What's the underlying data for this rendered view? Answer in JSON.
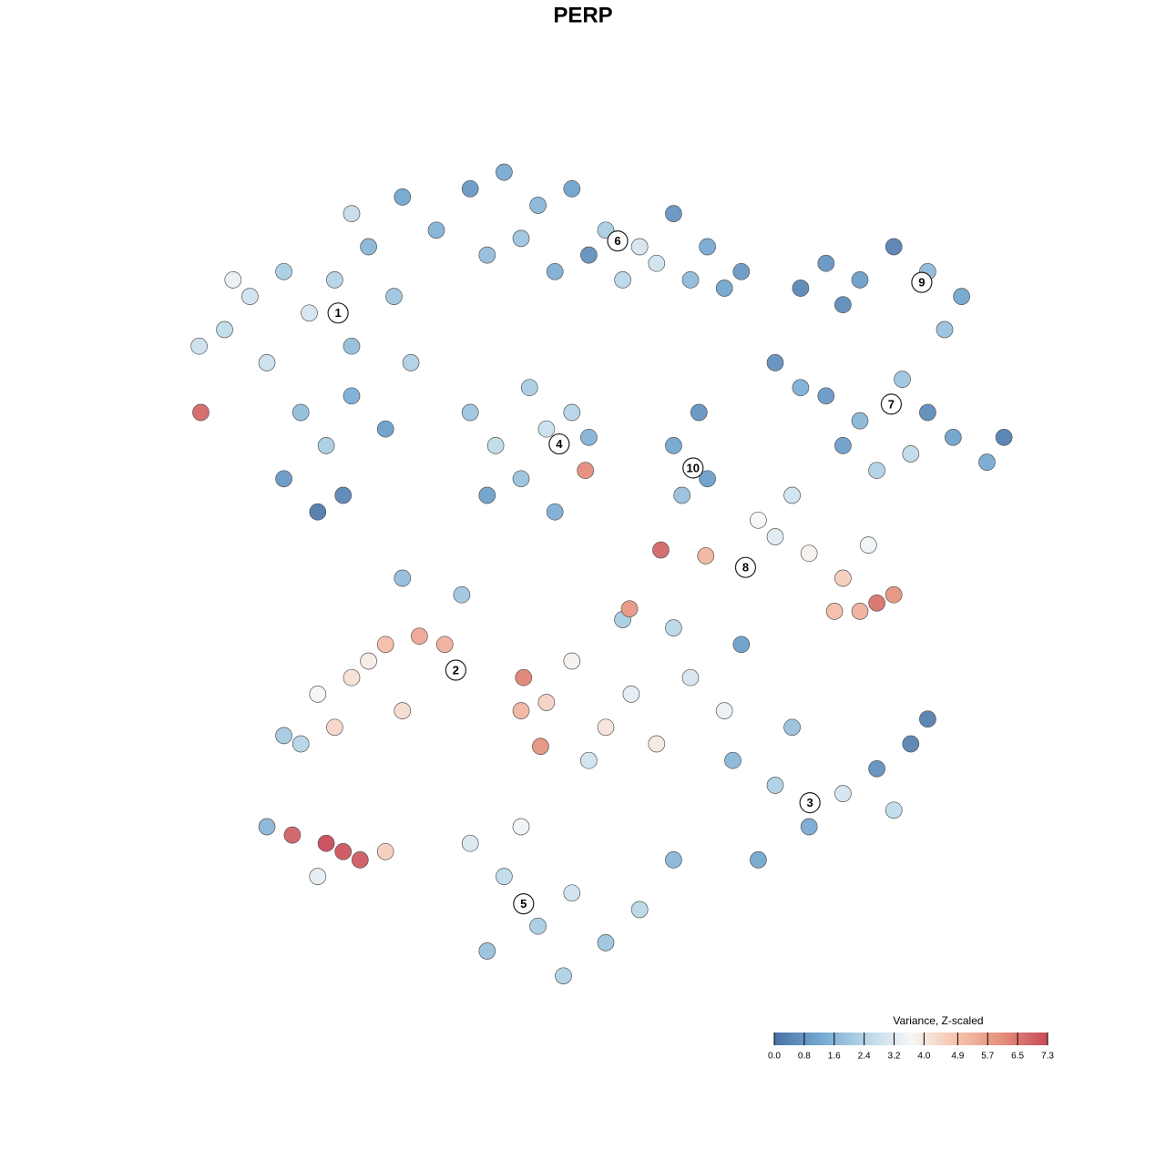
{
  "chart_data": {
    "type": "scatter",
    "title": "PERP",
    "xlim": [
      0,
      100
    ],
    "ylim": [
      0,
      100
    ],
    "x": [
      5,
      8,
      12,
      15,
      18,
      20,
      22,
      25,
      27,
      10,
      14,
      17,
      20,
      12,
      24,
      2,
      2.2,
      16,
      19,
      6,
      20,
      26,
      30,
      34,
      38,
      42,
      46,
      50,
      54,
      58,
      62,
      66,
      36,
      40,
      44,
      48,
      52,
      56,
      60,
      64,
      73,
      76,
      80,
      84,
      88,
      92,
      90,
      78,
      70,
      73,
      76,
      80,
      85,
      88,
      91,
      95,
      97,
      86,
      82,
      78,
      34,
      37,
      40,
      43,
      46,
      48,
      41,
      36,
      47.6,
      44,
      58,
      61,
      59,
      62,
      68,
      72,
      74,
      78,
      80,
      82,
      84,
      77,
      81,
      70,
      61.8,
      56.5,
      20,
      24,
      28,
      31,
      16,
      18,
      14,
      12,
      26,
      22,
      40,
      40.3,
      43,
      46,
      50,
      53,
      56,
      60,
      64,
      48,
      42.3,
      58,
      66,
      52,
      65,
      70,
      74,
      78,
      82,
      86,
      88,
      84,
      68,
      72,
      34,
      38,
      42,
      46,
      50,
      54,
      58,
      36,
      45,
      40,
      10,
      13,
      17,
      19,
      21,
      16,
      24,
      33,
      26,
      52.8
    ],
    "y": [
      80,
      84,
      87,
      82,
      86,
      78,
      90,
      84,
      76,
      76,
      70,
      66,
      72,
      62,
      68,
      78,
      70,
      58,
      60,
      86,
      94,
      96,
      92,
      97,
      99,
      95,
      97,
      92,
      90,
      94,
      90,
      87,
      89,
      91,
      87,
      89,
      86,
      88,
      86,
      85,
      85,
      88,
      86,
      90,
      87,
      84,
      80,
      83,
      76,
      73,
      72,
      69,
      74,
      70,
      67,
      64,
      67,
      65,
      63,
      66,
      70,
      66,
      62,
      68,
      70,
      67,
      73,
      60,
      63,
      58,
      66,
      70,
      60,
      62,
      57,
      60,
      53,
      50,
      46,
      47,
      48,
      46,
      54,
      55,
      52.7,
      53.4,
      38,
      42,
      43,
      42,
      36,
      32,
      30,
      31,
      34,
      40,
      34,
      38,
      35,
      40,
      32,
      36,
      30,
      38,
      34,
      28,
      29.7,
      44,
      42,
      45,
      28,
      25,
      20,
      24,
      27,
      30,
      33,
      22,
      16,
      32,
      18,
      14,
      8,
      12,
      6,
      10,
      16,
      5,
      2,
      20,
      20,
      19,
      18,
      17,
      16,
      14,
      17,
      48,
      50,
      46.3
    ],
    "values": [
      2.6,
      2.9,
      2.2,
      3.0,
      2.4,
      1.8,
      1.6,
      2.0,
      2.3,
      2.8,
      1.8,
      2.2,
      1.4,
      0.9,
      1.0,
      2.8,
      6.8,
      0.2,
      0.5,
      3.4,
      2.7,
      1.2,
      1.5,
      0.9,
      1.3,
      1.6,
      1.1,
      2.2,
      3.0,
      0.8,
      1.3,
      0.9,
      1.8,
      2.0,
      1.4,
      0.7,
      2.5,
      2.9,
      1.7,
      1.2,
      0.5,
      0.8,
      1.0,
      0.4,
      1.7,
      1.2,
      1.9,
      0.6,
      0.7,
      1.4,
      0.9,
      1.6,
      2.0,
      0.6,
      1.1,
      1.3,
      0.3,
      2.6,
      2.3,
      1.0,
      2.0,
      2.6,
      1.9,
      2.8,
      2.4,
      1.5,
      2.2,
      1.1,
      6.1,
      1.4,
      1.2,
      0.8,
      1.9,
      1.0,
      3.6,
      2.9,
      3.8,
      4.6,
      5.3,
      6.6,
      6.0,
      5.0,
      3.5,
      3.2,
      5.2,
      6.8,
      4.2,
      5.0,
      5.5,
      5.3,
      3.7,
      4.4,
      2.4,
      2.1,
      4.3,
      3.9,
      5.2,
      6.3,
      4.5,
      3.8,
      4.1,
      3.3,
      4.0,
      3.0,
      3.4,
      2.9,
      6.0,
      2.5,
      1.0,
      2.2,
      1.6,
      2.3,
      1.3,
      3.0,
      0.7,
      0.4,
      0.3,
      2.6,
      1.2,
      1.9,
      3.1,
      2.6,
      2.2,
      2.9,
      2.0,
      2.5,
      1.6,
      1.9,
      2.3,
      3.5,
      1.6,
      6.9,
      7.3,
      7.1,
      7.0,
      3.3,
      4.6,
      2.0,
      1.8,
      5.9
    ],
    "annotations": [
      {
        "text": "1",
        "x": 18.4,
        "y": 82.0
      },
      {
        "text": "2",
        "x": 32.3,
        "y": 38.9
      },
      {
        "text": "3",
        "x": 74.1,
        "y": 22.9
      },
      {
        "text": "4",
        "x": 44.5,
        "y": 66.2
      },
      {
        "text": "5",
        "x": 40.3,
        "y": 10.7
      },
      {
        "text": "6",
        "x": 51.4,
        "y": 90.7
      },
      {
        "text": "7",
        "x": 83.7,
        "y": 71.0
      },
      {
        "text": "8",
        "x": 66.5,
        "y": 51.3
      },
      {
        "text": "9",
        "x": 87.3,
        "y": 85.7
      },
      {
        "text": "10",
        "x": 60.3,
        "y": 63.3
      }
    ],
    "colorbar": {
      "title": "Variance, Z-scaled",
      "clim": [
        0,
        7.3
      ],
      "colors": [
        "#4a72a6",
        "#74a7d0",
        "#b7d6e8",
        "#f7f7f7",
        "#f6c3ad",
        "#e48f7c",
        "#c94a5a"
      ],
      "ticks": [
        {
          "value": 0,
          "label": "0.0"
        },
        0.8,
        1.6,
        2.4,
        3.2,
        {
          "value": 4,
          "label": "4.0"
        },
        4.9,
        5.7,
        6.5,
        7.3
      ]
    }
  }
}
